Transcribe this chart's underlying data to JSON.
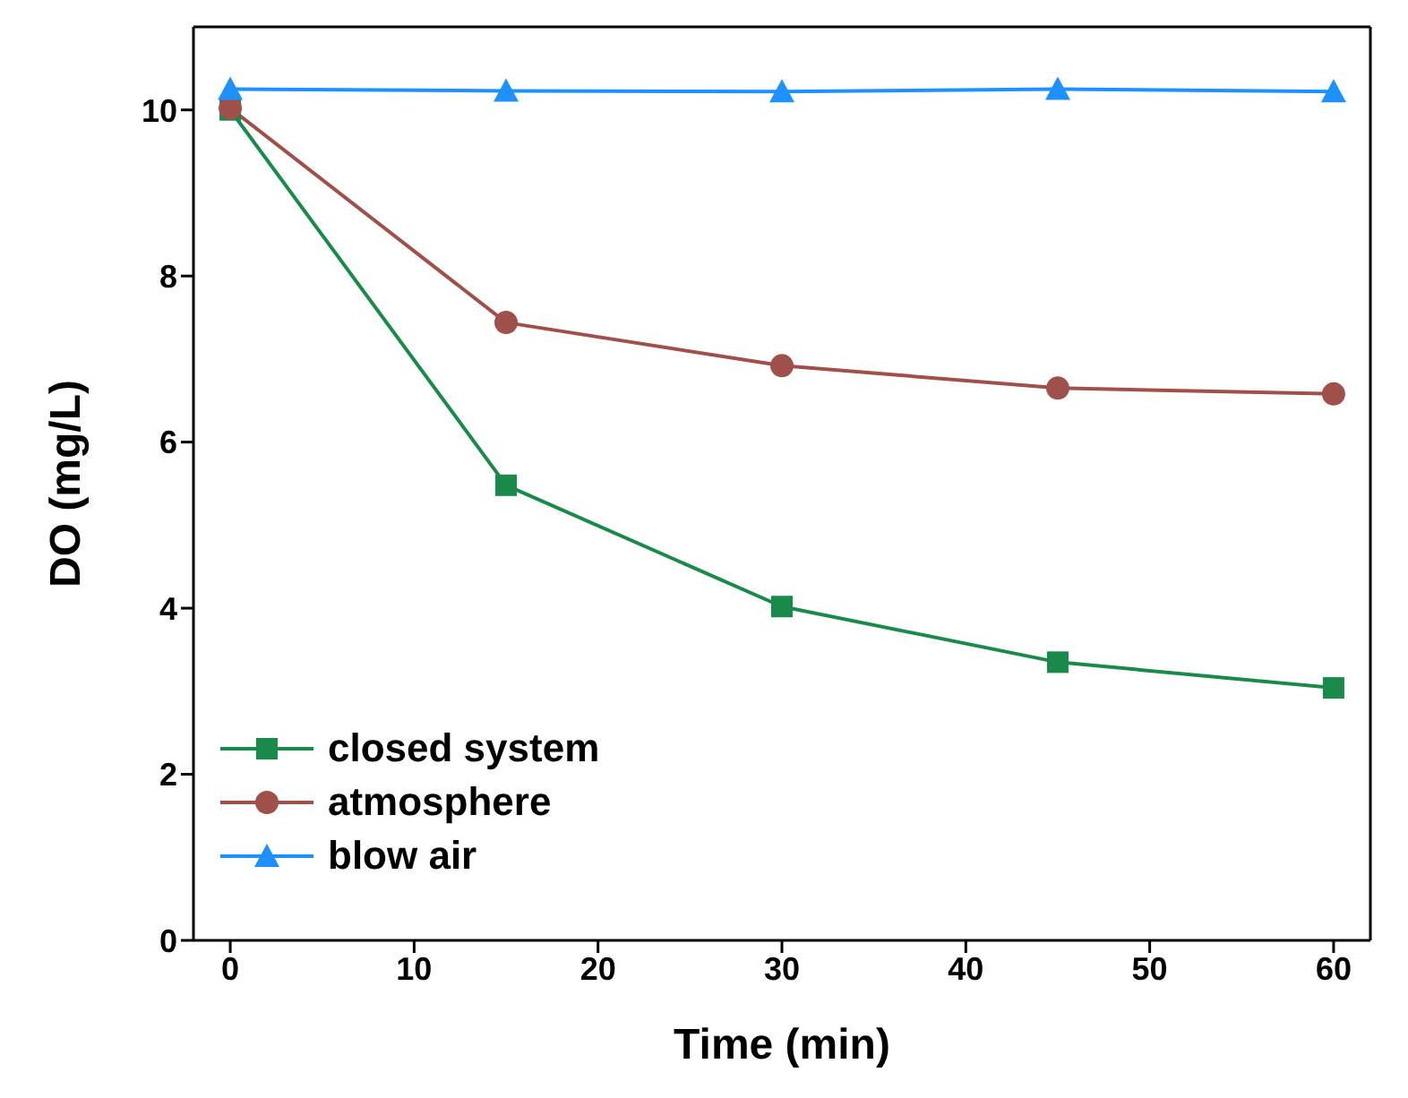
{
  "chart_data": {
    "type": "line",
    "xlabel": "Time (min)",
    "ylabel": "DO (mg/L)",
    "x": [
      0,
      15,
      30,
      45,
      60
    ],
    "series": [
      {
        "name": "closed system",
        "color": "#1a8a4a",
        "marker": "square",
        "values": [
          10.0,
          5.48,
          4.02,
          3.35,
          3.04
        ]
      },
      {
        "name": "atmosphere",
        "color": "#a0504a",
        "marker": "circle",
        "values": [
          10.02,
          7.44,
          6.92,
          6.65,
          6.58
        ]
      },
      {
        "name": "blow air",
        "color": "#1e90ff",
        "marker": "triangle",
        "values": [
          10.25,
          10.23,
          10.22,
          10.25,
          10.22
        ]
      }
    ],
    "xlim": [
      -2,
      62
    ],
    "xticks": [
      0,
      10,
      20,
      30,
      40,
      50,
      60
    ],
    "ylim": [
      0,
      11
    ],
    "yticks": [
      0,
      2,
      4,
      6,
      8,
      10
    ],
    "grid": false,
    "legend": "bottom left"
  }
}
